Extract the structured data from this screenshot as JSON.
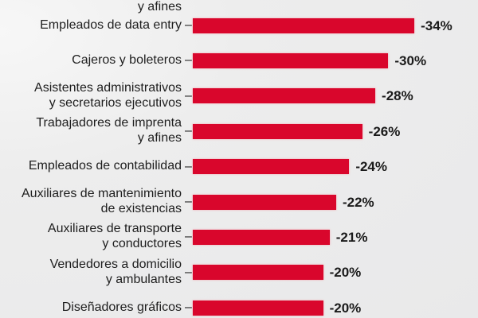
{
  "chart_data": {
    "type": "bar",
    "orientation": "horizontal",
    "partial_top_label": "y afines",
    "categories": [
      [
        "Empleados de data entry"
      ],
      [
        "Cajeros y boleteros"
      ],
      [
        "Asistentes administrativos",
        "y secretarios ejecutivos"
      ],
      [
        "Trabajadores de imprenta",
        "y afines"
      ],
      [
        "Empleados de contabilidad"
      ],
      [
        "Auxiliares de mantenimiento",
        "de existencias"
      ],
      [
        "Auxiliares de transporte",
        "y conductores"
      ],
      [
        "Vendedores a domicilio",
        "y ambulantes"
      ],
      [
        "Diseñadores gráficos"
      ]
    ],
    "values": [
      -34,
      -30,
      -28,
      -26,
      -24,
      -22,
      -21,
      -20,
      -20
    ],
    "value_labels": [
      "-34%",
      "-30%",
      "-28%",
      "-26%",
      "-24%",
      "-22%",
      "-21%",
      "-20%",
      "-20%"
    ],
    "bar_color": "#d9062c",
    "xlim": [
      0,
      -35
    ]
  }
}
